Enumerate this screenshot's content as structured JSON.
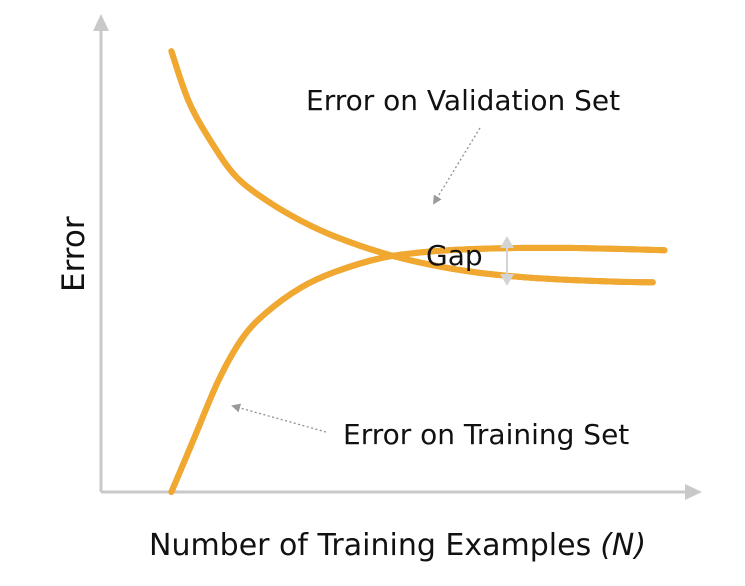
{
  "colors": {
    "curve": "#f0a830",
    "curve_edge": "#d98a10",
    "axis": "#c9c9c9",
    "pointer": "#8f8f8f",
    "gap_arrow": "#cfcfcf"
  },
  "icons": {
    "axis_arrow_x": "triangle-right",
    "axis_arrow_y": "triangle-up",
    "gap_arrow": "double-headed-vertical-arrow"
  },
  "chart_data": {
    "type": "line",
    "title": "",
    "xlabel": "Number of Training Examples",
    "xlabel_var": "(N)",
    "ylabel": "Error",
    "xlim": [
      0,
      100
    ],
    "ylim": [
      0,
      100
    ],
    "grid": false,
    "legend": "none",
    "axis_ticks": "none",
    "series": [
      {
        "key": "validation",
        "x": [
          12,
          15,
          19,
          23,
          28,
          34,
          40,
          48,
          56,
          64,
          72,
          80,
          88,
          94
        ],
        "y": [
          95,
          84,
          75,
          68,
          63,
          58.5,
          55,
          51.5,
          49,
          47.3,
          46.3,
          45.7,
          45.3,
          45.2
        ]
      },
      {
        "key": "training",
        "x": [
          12,
          16,
          20,
          24,
          28,
          34,
          40,
          48,
          56,
          64,
          72,
          80,
          88,
          96
        ],
        "y": [
          0,
          12,
          24,
          33,
          38.5,
          44,
          47.5,
          50.5,
          51.8,
          52.4,
          52.6,
          52.6,
          52.4,
          52.1
        ]
      }
    ],
    "annotations": {
      "validation": "Error on Validation Set",
      "training": "Error on Training Set",
      "gap": "Gap"
    }
  }
}
